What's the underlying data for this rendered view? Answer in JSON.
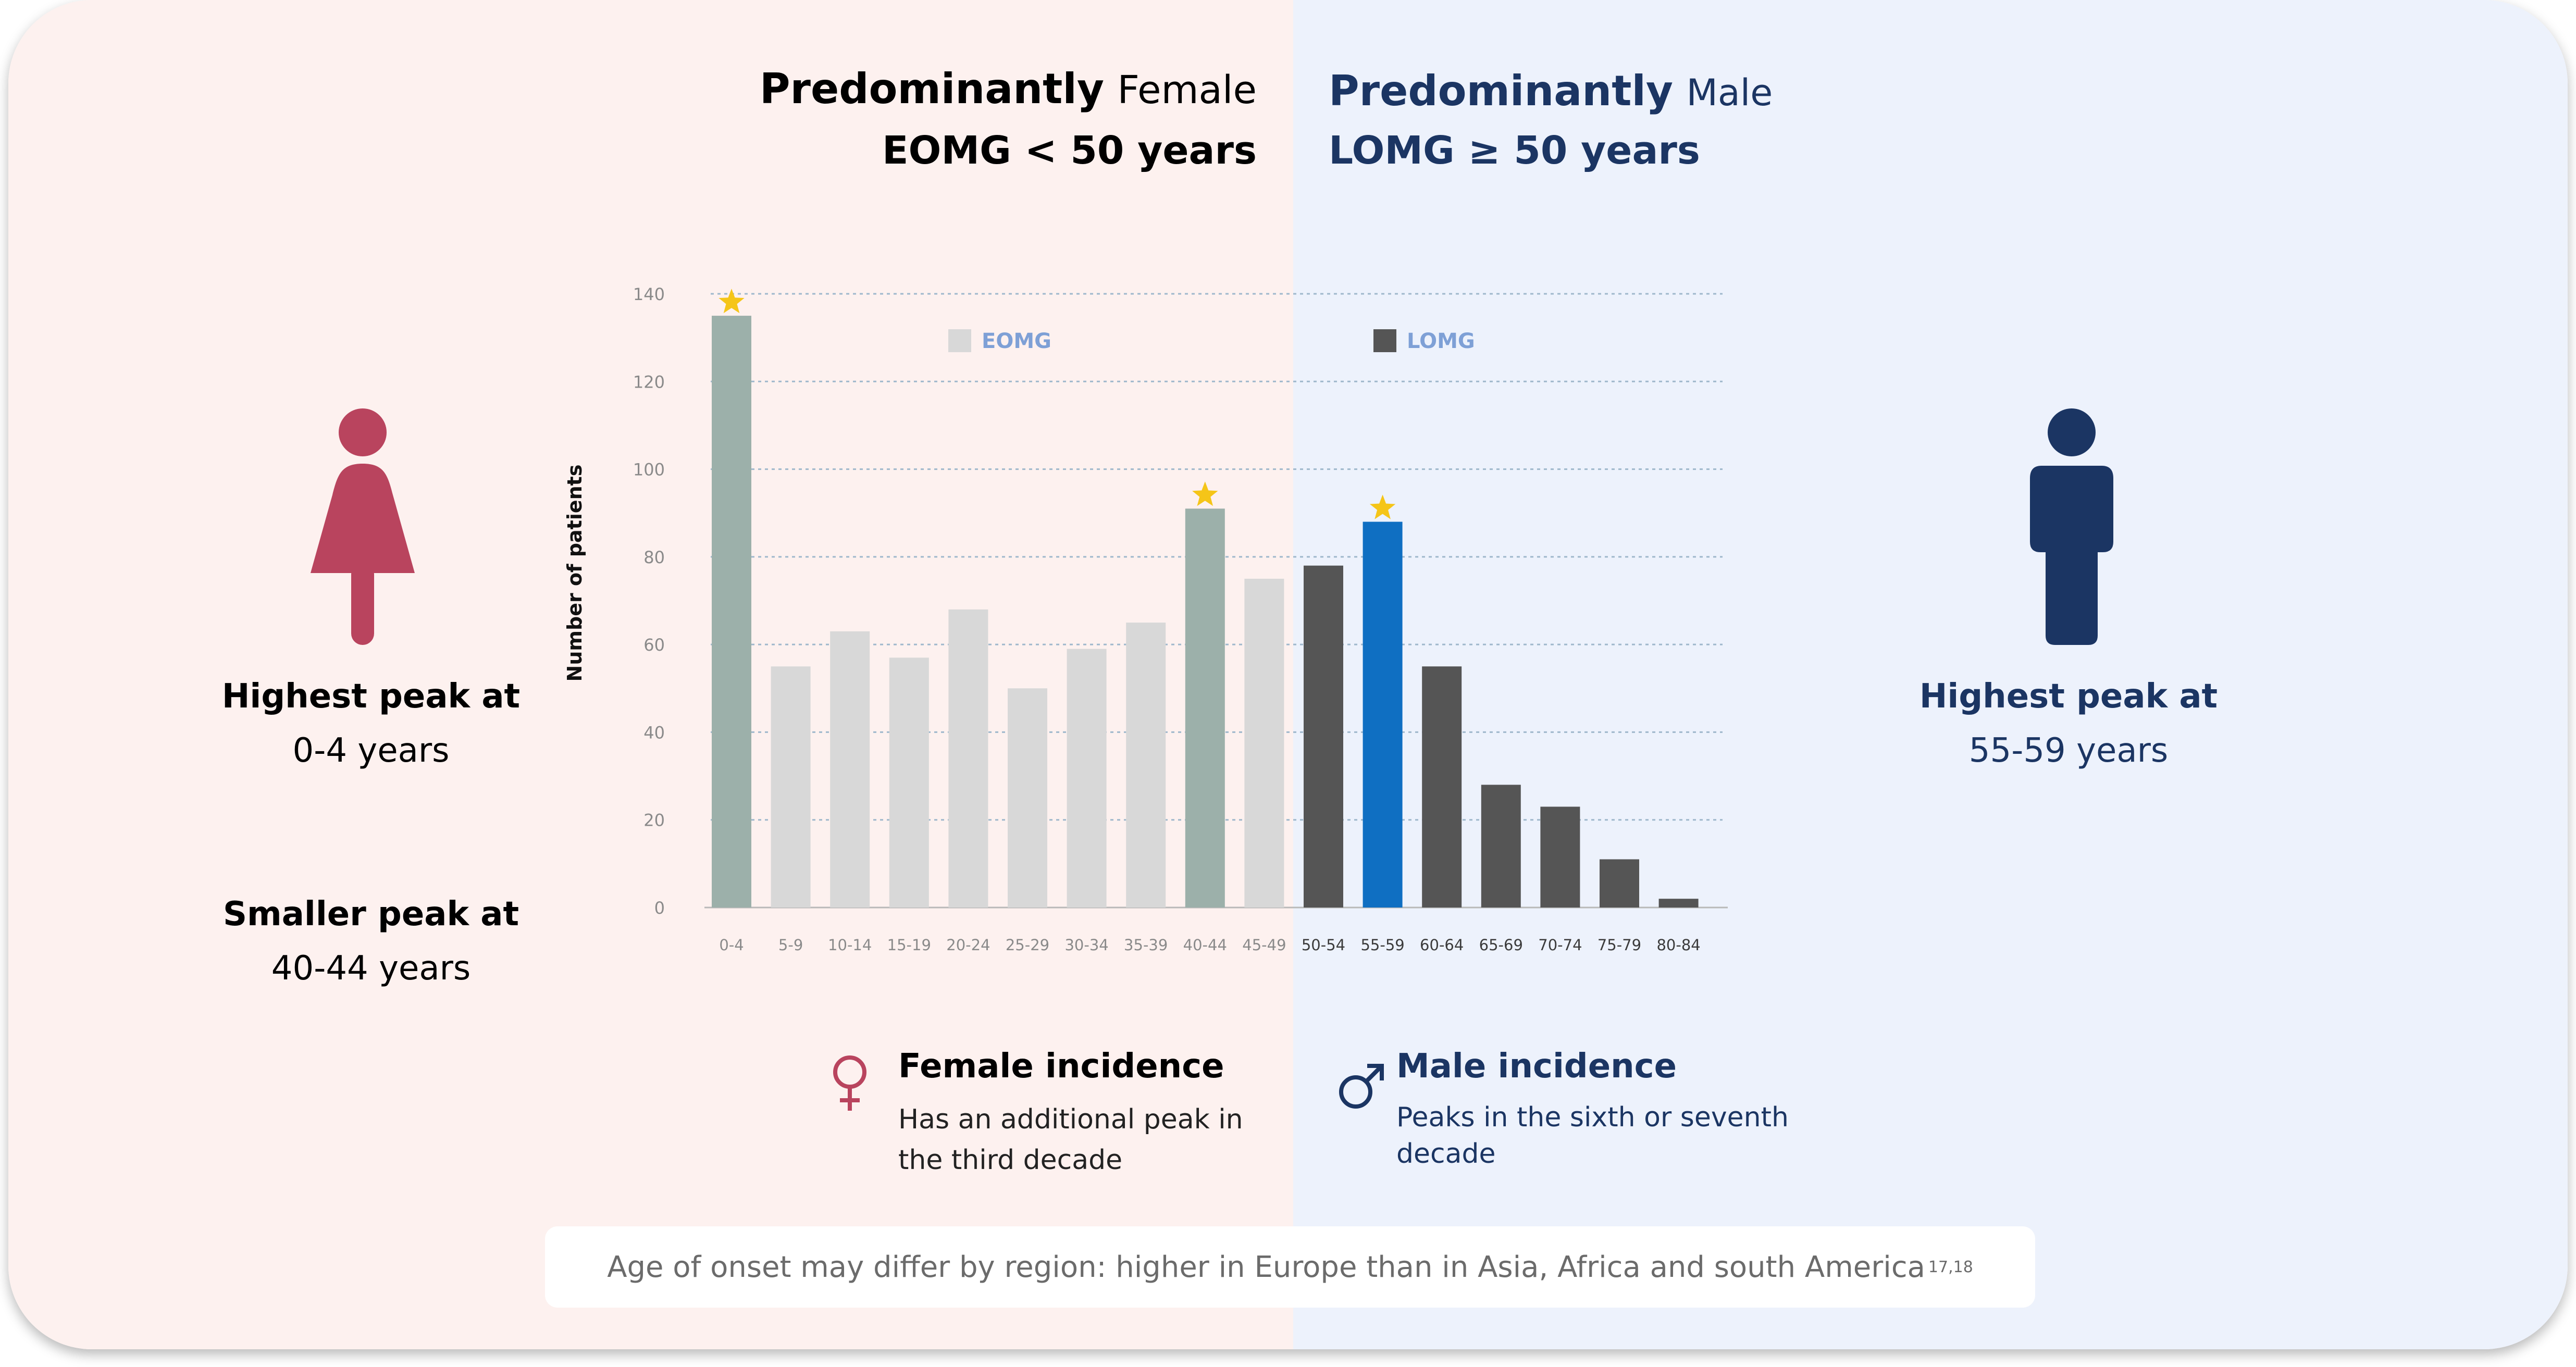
{
  "header": {
    "left_line1_bold": "Predominantly",
    "left_line1_word": "Female",
    "left_line2": "EOMG < 50 years",
    "right_line1_bold": "Predominantly",
    "right_line1_word": "Male",
    "right_line2": "LOMG ≥ 50 years"
  },
  "female_panel": {
    "highest_peak_label": "Highest peak at",
    "highest_peak_value": "0-4 years",
    "smaller_peak_label": "Smaller peak at",
    "smaller_peak_value": "40-44 years"
  },
  "male_panel": {
    "highest_peak_label": "Highest peak at",
    "highest_peak_value": "55-59 years"
  },
  "incidence": {
    "female_title": "Female incidence",
    "female_desc": "Has an additional peak in the third decade",
    "male_title": "Male incidence",
    "male_desc": "Peaks in the sixth or seventh decade"
  },
  "footer": {
    "text": "Age of onset may differ by region: higher in Europe than in Asia, Africa and south America",
    "refs": "17,18"
  },
  "colors": {
    "female_accent": "#b9445e",
    "male_accent": "#1b3563",
    "eomg_bar": "#d8d8d8",
    "eomg_peak_bar": "#9cb0aa",
    "lomg_bar": "#555555",
    "lomg_peak_bar": "#0f6fc2",
    "star": "#f5c518",
    "legend_text": "#7ea0d6"
  },
  "icons": [
    "female-figure-icon",
    "male-figure-icon",
    "female-symbol-icon",
    "male-symbol-icon",
    "star-icon"
  ],
  "chart_data": {
    "type": "bar",
    "ylabel": "Number of patients",
    "xlabel": "",
    "ylim": [
      0,
      140
    ],
    "yticks": [
      0,
      20,
      40,
      60,
      80,
      100,
      120,
      140
    ],
    "grid": true,
    "legend": [
      "EOMG",
      "LOMG"
    ],
    "categories": [
      "0-4",
      "5-9",
      "10-14",
      "15-19",
      "20-24",
      "25-29",
      "30-34",
      "35-39",
      "40-44",
      "45-49",
      "50-54",
      "55-59",
      "60-64",
      "65-69",
      "70-74",
      "75-79",
      "80-84"
    ],
    "values": [
      135,
      55,
      63,
      57,
      68,
      50,
      59,
      65,
      91,
      75,
      78,
      88,
      55,
      28,
      23,
      11,
      2
    ],
    "groups": [
      "EOMG",
      "EOMG",
      "EOMG",
      "EOMG",
      "EOMG",
      "EOMG",
      "EOMG",
      "EOMG",
      "EOMG",
      "EOMG",
      "LOMG",
      "LOMG",
      "LOMG",
      "LOMG",
      "LOMG",
      "LOMG",
      "LOMG"
    ],
    "peaks": [
      "0-4",
      "40-44",
      "55-59"
    ]
  }
}
